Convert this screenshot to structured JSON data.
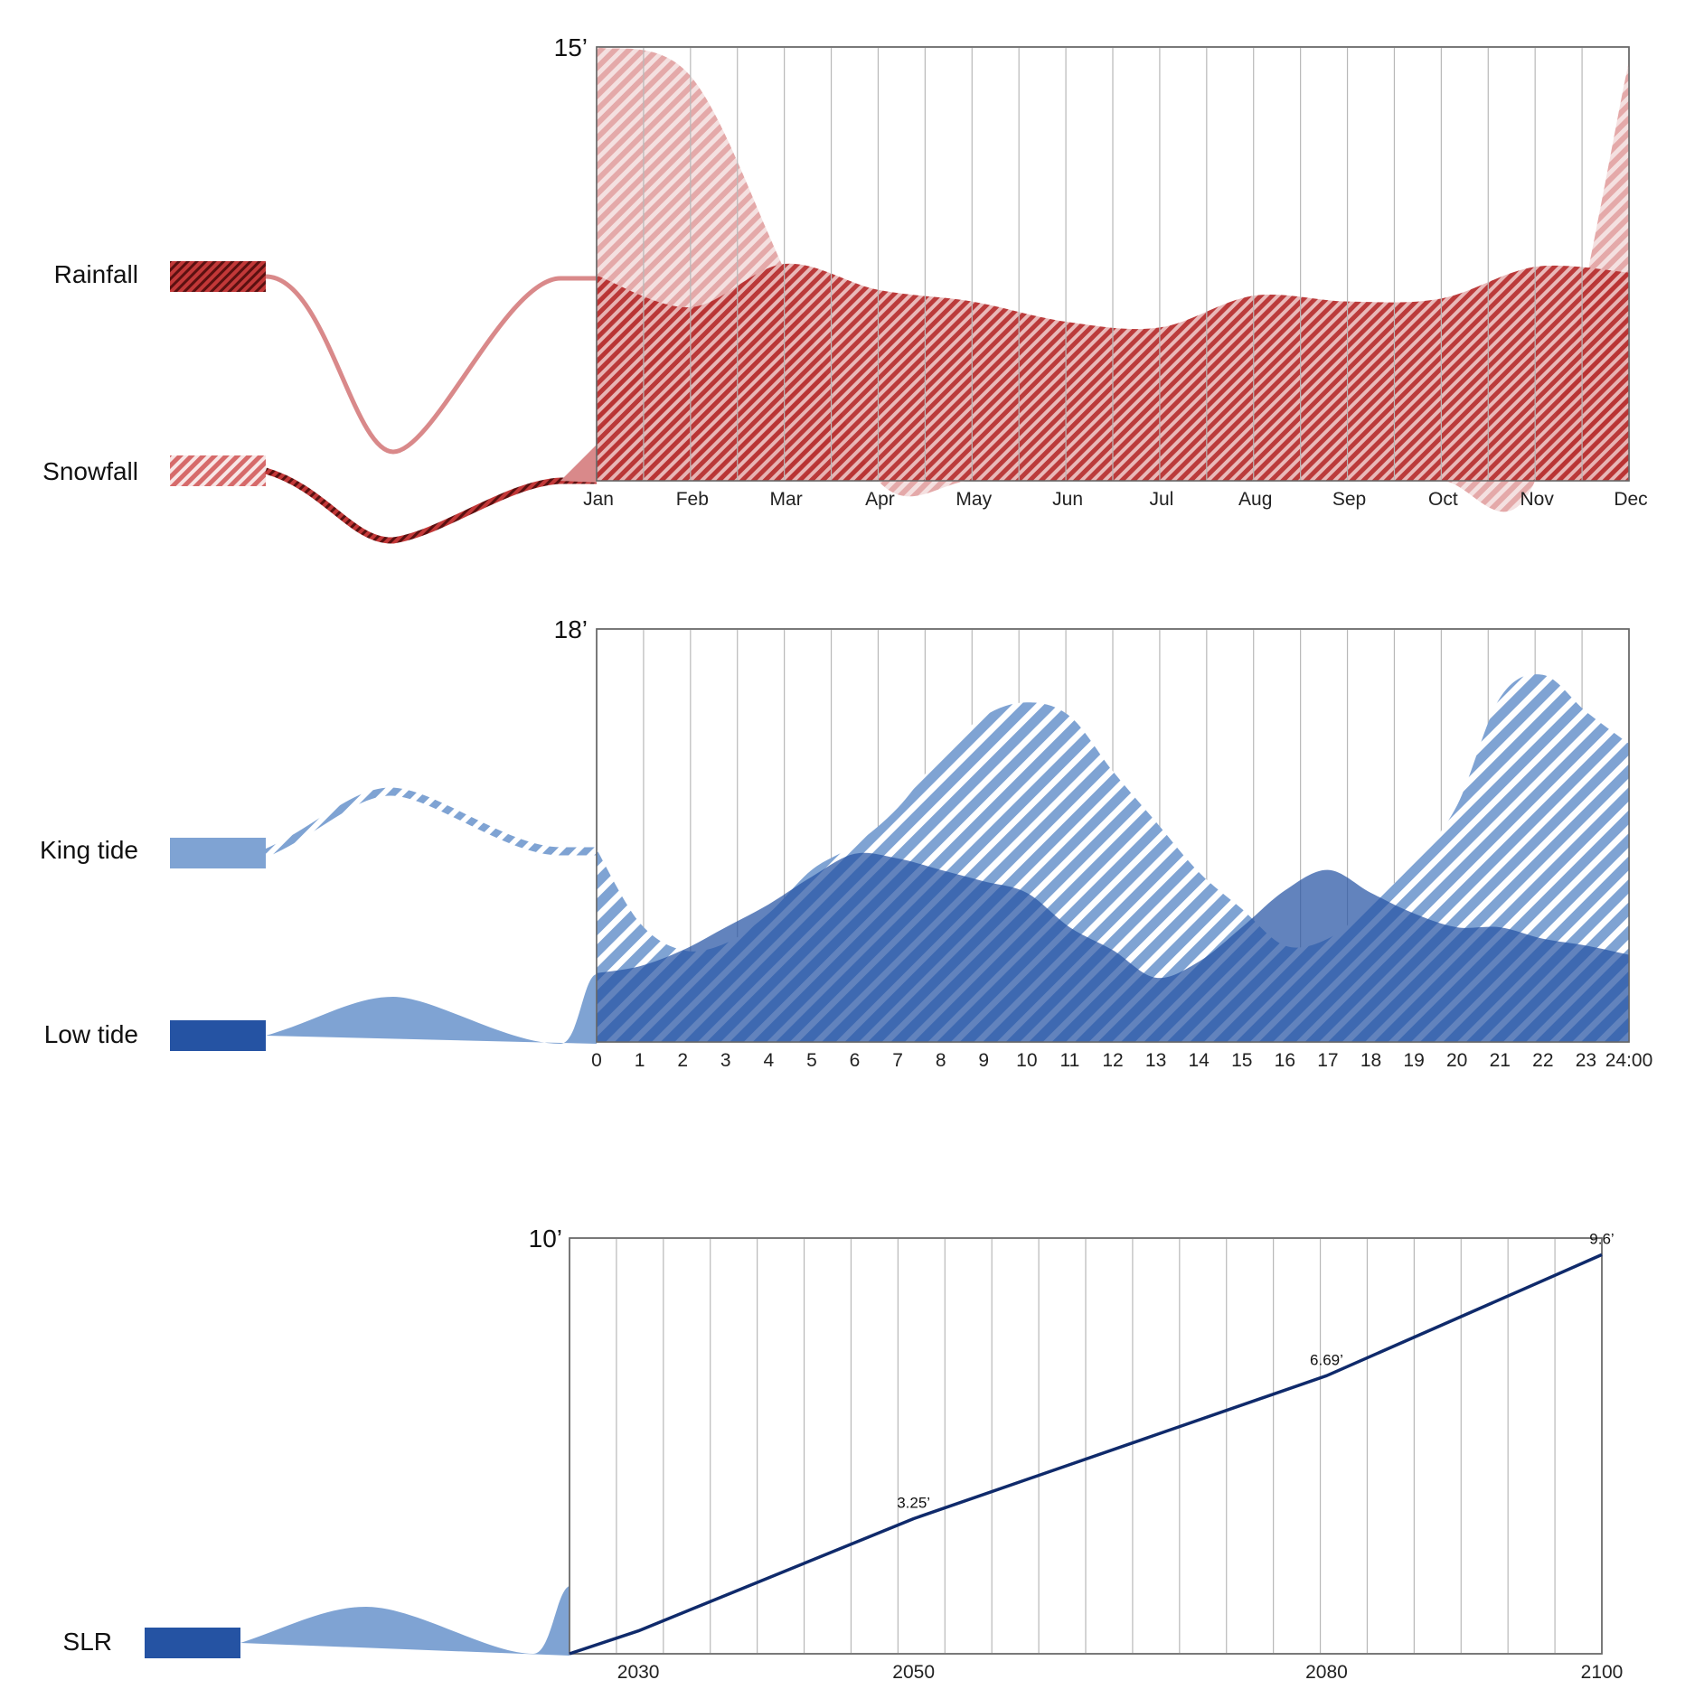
{
  "colors": {
    "rain": "#b52a2a",
    "rain_light": "#d9898a",
    "snow_stripe": "#c54b4b",
    "king": "#7fa3d3",
    "low": "#2553a3",
    "slr_line": "#0f2a6b",
    "grid": "#b8b8b8",
    "frame": "#666666"
  },
  "chart_data": [
    {
      "id": "precipitation",
      "type": "area",
      "ymax_label": "15’",
      "ylim": [
        0,
        15
      ],
      "categories": [
        "Jan",
        "Feb",
        "Mar",
        "Apr",
        "May",
        "Jun",
        "Jul",
        "Aug",
        "Sep",
        "Oct",
        "Nov",
        "Dec"
      ],
      "series": [
        {
          "name": "Rainfall",
          "pattern": "dense-stripes",
          "values": [
            7.1,
            6.0,
            7.5,
            6.6,
            6.2,
            5.5,
            5.3,
            6.4,
            6.2,
            6.3,
            7.4,
            7.2
          ]
        },
        {
          "name": "Snowfall",
          "pattern": "light-stripes",
          "values": [
            15.0,
            14.0,
            7.3,
            0,
            0,
            0,
            0,
            0,
            0,
            0,
            0,
            14.5
          ]
        }
      ],
      "grid": true
    },
    {
      "id": "tides",
      "type": "area",
      "ymax_label": "18’",
      "ylim": [
        0,
        18
      ],
      "categories": [
        "0",
        "1",
        "2",
        "3",
        "4",
        "5",
        "6",
        "7",
        "8",
        "9",
        "10",
        "11",
        "12",
        "13",
        "14",
        "15",
        "16",
        "17",
        "18",
        "19",
        "20",
        "21",
        "22",
        "23",
        "24:00"
      ],
      "series": [
        {
          "name": "King tide",
          "pattern": "stripes",
          "values": [
            8.4,
            5.2,
            4.0,
            4.3,
            5.6,
            7.5,
            8.6,
            10.2,
            12.5,
            14.2,
            14.8,
            14.2,
            11.8,
            9.6,
            7.4,
            5.8,
            4.2,
            4.5,
            6.0,
            7.8,
            10.3,
            15.0,
            16.0,
            14.4,
            13.0
          ]
        },
        {
          "name": "Low tide",
          "pattern": "solid",
          "values": [
            3.0,
            3.3,
            4.0,
            5.0,
            6.0,
            7.2,
            8.2,
            8.0,
            7.5,
            7.0,
            6.5,
            5.0,
            4.0,
            2.8,
            3.5,
            5.0,
            6.6,
            7.5,
            6.5,
            5.6,
            5.0,
            5.0,
            4.5,
            4.2,
            3.8
          ]
        }
      ],
      "grid": true
    },
    {
      "id": "slr",
      "type": "line",
      "ymax_label": "10’",
      "ylim": [
        0,
        10
      ],
      "xlim": [
        2025,
        2100
      ],
      "x_ticks": [
        "2030",
        "2050",
        "2080",
        "2100"
      ],
      "series": [
        {
          "name": "SLR",
          "x": [
            2025,
            2030,
            2050,
            2080,
            2100
          ],
          "values": [
            0,
            0.55,
            3.25,
            6.69,
            9.6
          ]
        }
      ],
      "annotations": [
        "3.25’",
        "6.69’",
        "9.6’"
      ],
      "grid": true
    }
  ]
}
